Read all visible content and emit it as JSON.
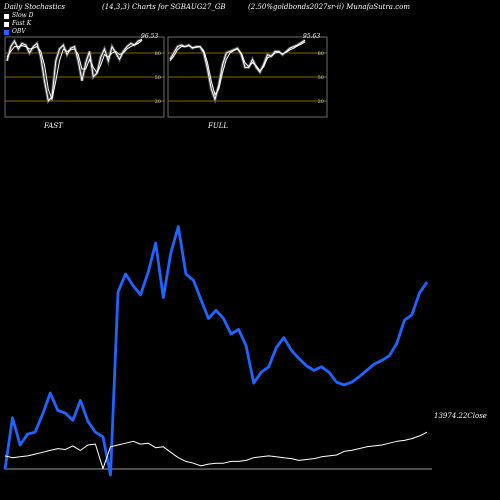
{
  "header": {
    "left": "Daily Stochastics",
    "center": "(14,3,3) Charts for SGBAUG27_GB",
    "right": "(2.50%goldbonds2027sr-ii) MunafaSutra.com"
  },
  "legend": [
    {
      "label": "Slow D",
      "color": "#ffffff"
    },
    {
      "label": "Fast K",
      "color": "#ffffff"
    },
    {
      "label": "OBV",
      "color": "#1e64ff"
    }
  ],
  "colors": {
    "background": "#000000",
    "obv": "#1e64ff",
    "price": "#ffffff",
    "level": "#b8860b",
    "panel_border": "#888888"
  },
  "chart_data": [
    {
      "type": "line",
      "title": "FAST",
      "levels": [
        80,
        50,
        20
      ],
      "ylim": [
        0,
        100
      ],
      "last_value_label": "96.53",
      "series": [
        {
          "name": "Fast K",
          "values": [
            70,
            88,
            95,
            85,
            92,
            90,
            80,
            88,
            92,
            75,
            45,
            20,
            25,
            70,
            85,
            90,
            78,
            86,
            88,
            70,
            45,
            68,
            82,
            50,
            55,
            75,
            85,
            70,
            88,
            80,
            72,
            82,
            88,
            92,
            90,
            95,
            97
          ]
        },
        {
          "name": "Slow D",
          "values": [
            75,
            82,
            88,
            88,
            89,
            88,
            85,
            86,
            88,
            82,
            65,
            35,
            22,
            45,
            70,
            85,
            82,
            84,
            85,
            78,
            60,
            60,
            72,
            62,
            55,
            65,
            78,
            75,
            80,
            82,
            78,
            80,
            85,
            88,
            90,
            92,
            96
          ]
        }
      ]
    },
    {
      "type": "line",
      "title": "FULL",
      "levels": [
        80,
        50,
        20
      ],
      "ylim": [
        0,
        100
      ],
      "last_value_label": "95.63",
      "series": [
        {
          "name": "Fast K",
          "values": [
            72,
            80,
            88,
            90,
            88,
            90,
            86,
            88,
            88,
            80,
            60,
            35,
            22,
            40,
            65,
            80,
            82,
            84,
            86,
            78,
            62,
            62,
            72,
            62,
            56,
            66,
            78,
            76,
            82,
            82,
            78,
            82,
            86,
            88,
            90,
            93,
            96
          ]
        },
        {
          "name": "Slow D",
          "values": [
            70,
            76,
            84,
            88,
            88,
            89,
            87,
            87,
            88,
            83,
            68,
            45,
            28,
            35,
            55,
            72,
            80,
            83,
            85,
            80,
            68,
            63,
            68,
            64,
            58,
            63,
            74,
            76,
            80,
            81,
            79,
            81,
            84,
            86,
            89,
            91,
            94
          ]
        }
      ]
    },
    {
      "type": "line",
      "title": "",
      "last_value_label": "13974.22Close",
      "series": [
        {
          "name": "OBV",
          "values": [
            -5,
            52,
            22,
            34,
            36,
            56,
            79,
            60,
            57,
            49,
            71,
            48,
            36,
            31,
            -11,
            190,
            210,
            197,
            187,
            212,
            244,
            184,
            233,
            262,
            210,
            203,
            182,
            161,
            170,
            161,
            144,
            149,
            131,
            90,
            102,
            108,
            129,
            140,
            126,
            117,
            109,
            104,
            108,
            102,
            91,
            88,
            91,
            97,
            104,
            111,
            115,
            120,
            134,
            159,
            165,
            189,
            201
          ]
        },
        {
          "name": "Close",
          "values": [
            10,
            8,
            9,
            10,
            12,
            14,
            16,
            18,
            17,
            21,
            16,
            22,
            23,
            -4,
            20,
            22,
            24,
            26,
            23,
            24,
            19,
            20,
            14,
            8,
            4,
            2,
            -1,
            1,
            2,
            2,
            4,
            4,
            5,
            8,
            9,
            10,
            9,
            8,
            7,
            5,
            6,
            7,
            9,
            10,
            11,
            15,
            16,
            18,
            20,
            21,
            22,
            24,
            26,
            27,
            29,
            32,
            36
          ]
        }
      ]
    }
  ]
}
